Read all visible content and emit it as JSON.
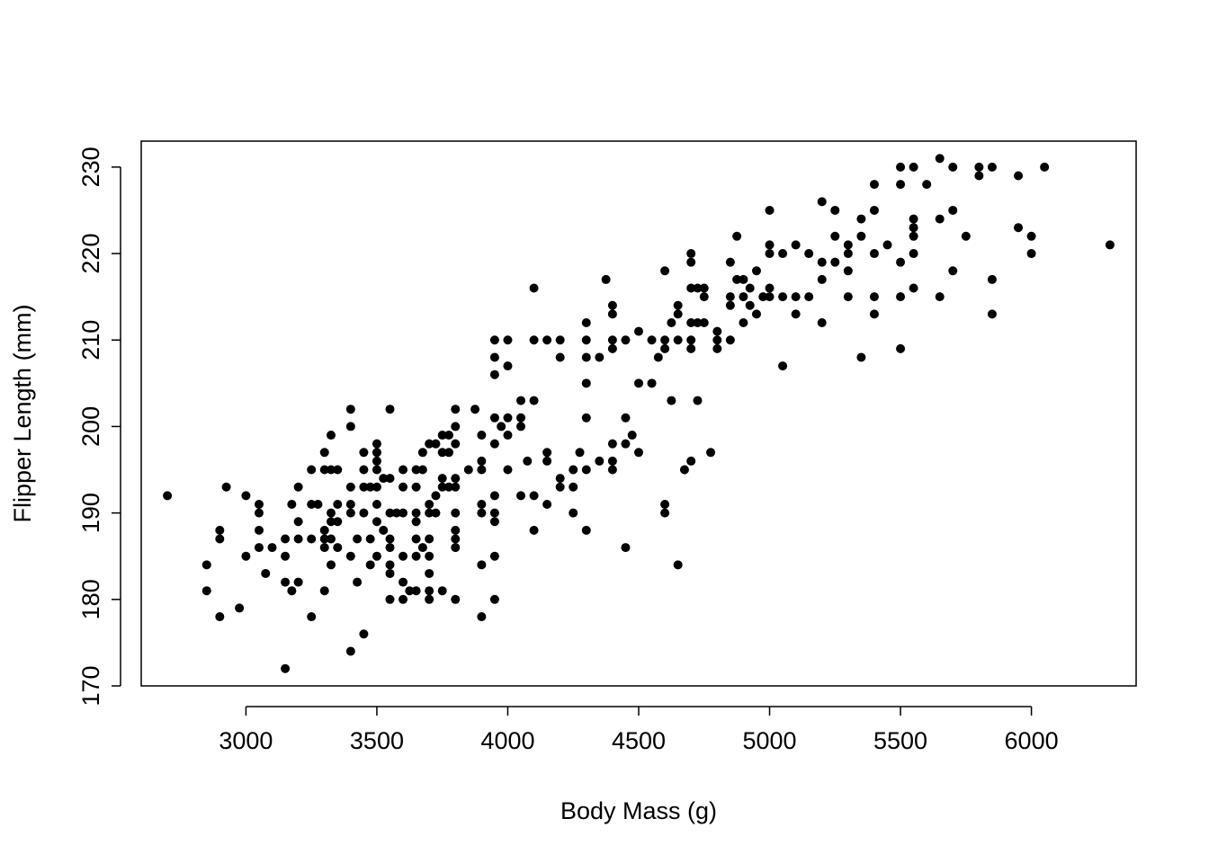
{
  "chart_data": {
    "type": "scatter",
    "title": "",
    "xlabel": "Body Mass (g)",
    "ylabel": "Flipper Length (mm)",
    "xlim": [
      2600,
      6400
    ],
    "ylim": [
      170,
      233
    ],
    "x_ticks": [
      3000,
      3500,
      4000,
      4500,
      5000,
      5500,
      6000
    ],
    "y_ticks": [
      170,
      180,
      190,
      200,
      210,
      220,
      230
    ],
    "grid": false,
    "legend": "none",
    "point_color": "#000000",
    "points": [
      [
        2700,
        192
      ],
      [
        2850,
        184
      ],
      [
        2850,
        181
      ],
      [
        2900,
        188
      ],
      [
        2900,
        187
      ],
      [
        2900,
        178
      ],
      [
        2925,
        193
      ],
      [
        2975,
        179
      ],
      [
        3000,
        192
      ],
      [
        3000,
        185
      ],
      [
        3050,
        191
      ],
      [
        3050,
        190
      ],
      [
        3050,
        188
      ],
      [
        3050,
        186
      ],
      [
        3075,
        183
      ],
      [
        3100,
        186
      ],
      [
        3150,
        187
      ],
      [
        3150,
        185
      ],
      [
        3150,
        182
      ],
      [
        3150,
        172
      ],
      [
        3175,
        181
      ],
      [
        3175,
        191
      ],
      [
        3200,
        193
      ],
      [
        3200,
        189
      ],
      [
        3200,
        187
      ],
      [
        3200,
        182
      ],
      [
        3250,
        195
      ],
      [
        3250,
        191
      ],
      [
        3250,
        187
      ],
      [
        3250,
        178
      ],
      [
        3275,
        191
      ],
      [
        3300,
        197
      ],
      [
        3300,
        195
      ],
      [
        3300,
        188
      ],
      [
        3300,
        187
      ],
      [
        3300,
        186
      ],
      [
        3300,
        181
      ],
      [
        3325,
        199
      ],
      [
        3325,
        195
      ],
      [
        3325,
        190
      ],
      [
        3325,
        189
      ],
      [
        3325,
        187
      ],
      [
        3325,
        184
      ],
      [
        3350,
        195
      ],
      [
        3350,
        191
      ],
      [
        3350,
        189
      ],
      [
        3350,
        186
      ],
      [
        3400,
        202
      ],
      [
        3400,
        200
      ],
      [
        3400,
        193
      ],
      [
        3400,
        191
      ],
      [
        3400,
        190
      ],
      [
        3400,
        185
      ],
      [
        3400,
        174
      ],
      [
        3425,
        187
      ],
      [
        3425,
        182
      ],
      [
        3450,
        197
      ],
      [
        3450,
        195
      ],
      [
        3450,
        193
      ],
      [
        3450,
        190
      ],
      [
        3450,
        176
      ],
      [
        3475,
        193
      ],
      [
        3475,
        187
      ],
      [
        3475,
        184
      ],
      [
        3500,
        198
      ],
      [
        3500,
        197
      ],
      [
        3500,
        196
      ],
      [
        3500,
        195
      ],
      [
        3500,
        193
      ],
      [
        3500,
        191
      ],
      [
        3500,
        189
      ],
      [
        3500,
        185
      ],
      [
        3525,
        188
      ],
      [
        3525,
        194
      ],
      [
        3550,
        202
      ],
      [
        3550,
        194
      ],
      [
        3550,
        190
      ],
      [
        3550,
        187
      ],
      [
        3550,
        186
      ],
      [
        3550,
        184
      ],
      [
        3550,
        183
      ],
      [
        3550,
        180
      ],
      [
        3575,
        190
      ],
      [
        3600,
        195
      ],
      [
        3600,
        193
      ],
      [
        3600,
        190
      ],
      [
        3600,
        185
      ],
      [
        3600,
        182
      ],
      [
        3600,
        180
      ],
      [
        3625,
        181
      ],
      [
        3650,
        195
      ],
      [
        3650,
        193
      ],
      [
        3650,
        190
      ],
      [
        3650,
        189
      ],
      [
        3650,
        187
      ],
      [
        3650,
        185
      ],
      [
        3650,
        181
      ],
      [
        3675,
        197
      ],
      [
        3675,
        195
      ],
      [
        3675,
        186
      ],
      [
        3700,
        198
      ],
      [
        3700,
        191
      ],
      [
        3700,
        190
      ],
      [
        3700,
        187
      ],
      [
        3700,
        185
      ],
      [
        3700,
        183
      ],
      [
        3700,
        181
      ],
      [
        3700,
        180
      ],
      [
        3725,
        198
      ],
      [
        3725,
        192
      ],
      [
        3725,
        190
      ],
      [
        3750,
        199
      ],
      [
        3750,
        197
      ],
      [
        3750,
        194
      ],
      [
        3750,
        193
      ],
      [
        3750,
        181
      ],
      [
        3775,
        199
      ],
      [
        3775,
        197
      ],
      [
        3775,
        193
      ],
      [
        3800,
        202
      ],
      [
        3800,
        200
      ],
      [
        3800,
        198
      ],
      [
        3800,
        194
      ],
      [
        3800,
        193
      ],
      [
        3800,
        190
      ],
      [
        3800,
        188
      ],
      [
        3800,
        187
      ],
      [
        3800,
        186
      ],
      [
        3800,
        180
      ],
      [
        3850,
        195
      ],
      [
        3875,
        202
      ],
      [
        3900,
        199
      ],
      [
        3900,
        196
      ],
      [
        3900,
        195
      ],
      [
        3900,
        191
      ],
      [
        3900,
        190
      ],
      [
        3900,
        184
      ],
      [
        3900,
        178
      ],
      [
        3950,
        210
      ],
      [
        3950,
        208
      ],
      [
        3950,
        206
      ],
      [
        3950,
        201
      ],
      [
        3950,
        198
      ],
      [
        3950,
        192
      ],
      [
        3950,
        190
      ],
      [
        3950,
        189
      ],
      [
        3950,
        185
      ],
      [
        3950,
        180
      ],
      [
        3975,
        200
      ],
      [
        4000,
        210
      ],
      [
        4000,
        207
      ],
      [
        4000,
        201
      ],
      [
        4000,
        199
      ],
      [
        4000,
        195
      ],
      [
        4050,
        203
      ],
      [
        4050,
        201
      ],
      [
        4050,
        200
      ],
      [
        4050,
        192
      ],
      [
        4075,
        196
      ],
      [
        4100,
        216
      ],
      [
        4100,
        210
      ],
      [
        4100,
        203
      ],
      [
        4100,
        192
      ],
      [
        4100,
        188
      ],
      [
        4150,
        210
      ],
      [
        4150,
        197
      ],
      [
        4150,
        196
      ],
      [
        4150,
        191
      ],
      [
        4200,
        210
      ],
      [
        4200,
        208
      ],
      [
        4200,
        194
      ],
      [
        4200,
        193
      ],
      [
        4250,
        195
      ],
      [
        4250,
        193
      ],
      [
        4250,
        190
      ],
      [
        4275,
        197
      ],
      [
        4300,
        212
      ],
      [
        4300,
        210
      ],
      [
        4300,
        208
      ],
      [
        4300,
        205
      ],
      [
        4300,
        201
      ],
      [
        4300,
        195
      ],
      [
        4300,
        188
      ],
      [
        4350,
        208
      ],
      [
        4350,
        196
      ],
      [
        4375,
        217
      ],
      [
        4400,
        214
      ],
      [
        4400,
        213
      ],
      [
        4400,
        210
      ],
      [
        4400,
        209
      ],
      [
        4400,
        198
      ],
      [
        4400,
        196
      ],
      [
        4400,
        195
      ],
      [
        4450,
        210
      ],
      [
        4450,
        201
      ],
      [
        4450,
        198
      ],
      [
        4450,
        186
      ],
      [
        4475,
        199
      ],
      [
        4500,
        211
      ],
      [
        4500,
        205
      ],
      [
        4500,
        197
      ],
      [
        4550,
        210
      ],
      [
        4550,
        205
      ],
      [
        4575,
        208
      ],
      [
        4600,
        218
      ],
      [
        4600,
        210
      ],
      [
        4600,
        209
      ],
      [
        4600,
        191
      ],
      [
        4600,
        190
      ],
      [
        4625,
        212
      ],
      [
        4625,
        203
      ],
      [
        4650,
        214
      ],
      [
        4650,
        213
      ],
      [
        4650,
        210
      ],
      [
        4650,
        184
      ],
      [
        4675,
        195
      ],
      [
        4700,
        220
      ],
      [
        4700,
        219
      ],
      [
        4700,
        216
      ],
      [
        4700,
        212
      ],
      [
        4700,
        210
      ],
      [
        4700,
        209
      ],
      [
        4700,
        196
      ],
      [
        4725,
        216
      ],
      [
        4725,
        212
      ],
      [
        4725,
        203
      ],
      [
        4750,
        216
      ],
      [
        4750,
        215
      ],
      [
        4750,
        212
      ],
      [
        4775,
        197
      ],
      [
        4800,
        211
      ],
      [
        4800,
        210
      ],
      [
        4800,
        209
      ],
      [
        4850,
        219
      ],
      [
        4850,
        215
      ],
      [
        4850,
        214
      ],
      [
        4850,
        210
      ],
      [
        4875,
        222
      ],
      [
        4875,
        217
      ],
      [
        4900,
        217
      ],
      [
        4900,
        215
      ],
      [
        4900,
        212
      ],
      [
        4925,
        216
      ],
      [
        4925,
        214
      ],
      [
        4950,
        218
      ],
      [
        4950,
        213
      ],
      [
        4975,
        215
      ],
      [
        5000,
        225
      ],
      [
        5000,
        221
      ],
      [
        5000,
        220
      ],
      [
        5000,
        216
      ],
      [
        5000,
        215
      ],
      [
        5050,
        220
      ],
      [
        5050,
        215
      ],
      [
        5050,
        207
      ],
      [
        5100,
        221
      ],
      [
        5100,
        215
      ],
      [
        5100,
        213
      ],
      [
        5150,
        220
      ],
      [
        5150,
        215
      ],
      [
        5200,
        226
      ],
      [
        5200,
        219
      ],
      [
        5200,
        217
      ],
      [
        5200,
        212
      ],
      [
        5250,
        225
      ],
      [
        5250,
        222
      ],
      [
        5250,
        219
      ],
      [
        5300,
        221
      ],
      [
        5300,
        220
      ],
      [
        5300,
        218
      ],
      [
        5300,
        215
      ],
      [
        5350,
        224
      ],
      [
        5350,
        222
      ],
      [
        5350,
        208
      ],
      [
        5400,
        228
      ],
      [
        5400,
        225
      ],
      [
        5400,
        220
      ],
      [
        5400,
        215
      ],
      [
        5400,
        213
      ],
      [
        5450,
        221
      ],
      [
        5500,
        230
      ],
      [
        5500,
        228
      ],
      [
        5500,
        219
      ],
      [
        5500,
        215
      ],
      [
        5500,
        209
      ],
      [
        5550,
        230
      ],
      [
        5550,
        224
      ],
      [
        5550,
        223
      ],
      [
        5550,
        222
      ],
      [
        5550,
        220
      ],
      [
        5550,
        216
      ],
      [
        5600,
        228
      ],
      [
        5650,
        231
      ],
      [
        5650,
        224
      ],
      [
        5650,
        215
      ],
      [
        5700,
        230
      ],
      [
        5700,
        225
      ],
      [
        5700,
        218
      ],
      [
        5750,
        222
      ],
      [
        5800,
        230
      ],
      [
        5800,
        229
      ],
      [
        5850,
        230
      ],
      [
        5850,
        217
      ],
      [
        5850,
        213
      ],
      [
        5950,
        229
      ],
      [
        5950,
        223
      ],
      [
        6000,
        222
      ],
      [
        6000,
        220
      ],
      [
        6050,
        230
      ],
      [
        6300,
        221
      ]
    ]
  }
}
